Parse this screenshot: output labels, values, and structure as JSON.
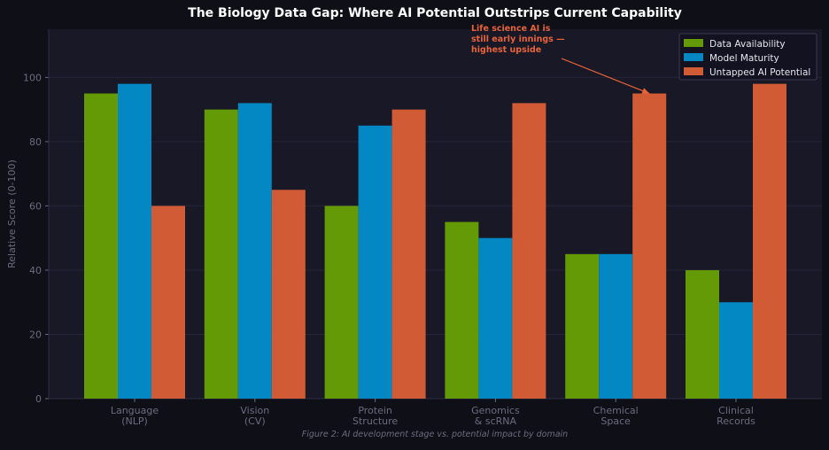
{
  "chart_data": {
    "type": "bar",
    "title": "The Biology Data Gap: Where AI Potential Outstrips Current Capability",
    "xlabel": "",
    "ylabel": "Relative Score (0-100)",
    "ylim": [
      0,
      115
    ],
    "yticks": [
      0,
      20,
      40,
      60,
      80,
      100
    ],
    "grid": true,
    "legend_position": "top-right",
    "categories": [
      [
        "Language",
        "(NLP)"
      ],
      [
        "Vision",
        "(CV)"
      ],
      [
        "Protein",
        "Structure"
      ],
      [
        "Genomics",
        "& scRNA"
      ],
      [
        "Chemical",
        "Space"
      ],
      [
        "Clinical",
        "Records"
      ]
    ],
    "series": [
      {
        "name": "Data Availability",
        "color": "#649a06",
        "values": [
          95,
          90,
          60,
          55,
          45,
          40
        ]
      },
      {
        "name": "Model Maturity",
        "color": "#0388c4",
        "values": [
          98,
          92,
          85,
          50,
          45,
          30
        ]
      },
      {
        "name": "Untapped AI Potential",
        "color": "#d15b35",
        "values": [
          60,
          65,
          90,
          92,
          95,
          98
        ]
      }
    ],
    "annotation": {
      "lines": [
        "Life science AI is",
        "still early innings —",
        "highest upside"
      ],
      "color": "#e8633a",
      "target_category_index": 4,
      "target_series_index": 2
    },
    "caption": "Figure 2: AI development stage vs. potential impact by domain",
    "colors": {
      "page_background": "#0f0f17",
      "plot_background": "#181826",
      "grid": "#24243a",
      "axis_text": "#6b6b80",
      "title": "#ffffff"
    }
  }
}
